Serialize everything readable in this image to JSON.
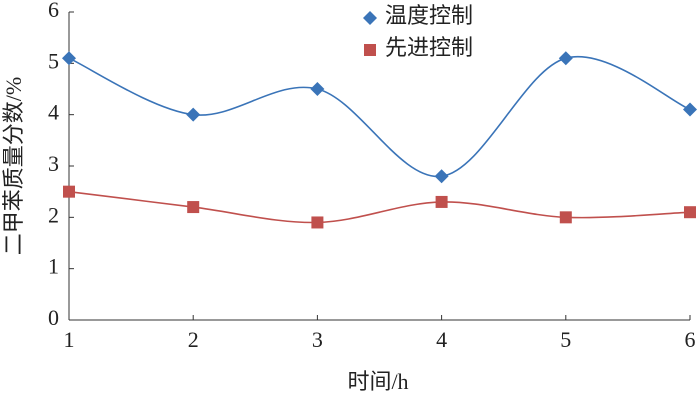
{
  "chart_data": {
    "type": "line",
    "x_label": "时间/h",
    "y_label": "二甲苯质量分数/%",
    "x": [
      1,
      2,
      3,
      4,
      5,
      6
    ],
    "xlim": [
      1,
      6
    ],
    "xticks": [
      1,
      2,
      3,
      4,
      5,
      6
    ],
    "ylim": [
      0,
      6
    ],
    "yticks": [
      0,
      1,
      2,
      3,
      4,
      5,
      6
    ],
    "grid": false,
    "smooth": true,
    "legend": "top",
    "series": [
      {
        "name": "温度控制",
        "color": "#3a74b8",
        "marker": "diamond",
        "values": [
          5.1,
          4.0,
          4.5,
          2.8,
          5.1,
          4.1
        ]
      },
      {
        "name": "先进控制",
        "color": "#c0504d",
        "marker": "square",
        "values": [
          2.5,
          2.2,
          1.9,
          2.3,
          2.0,
          2.1
        ]
      }
    ]
  }
}
